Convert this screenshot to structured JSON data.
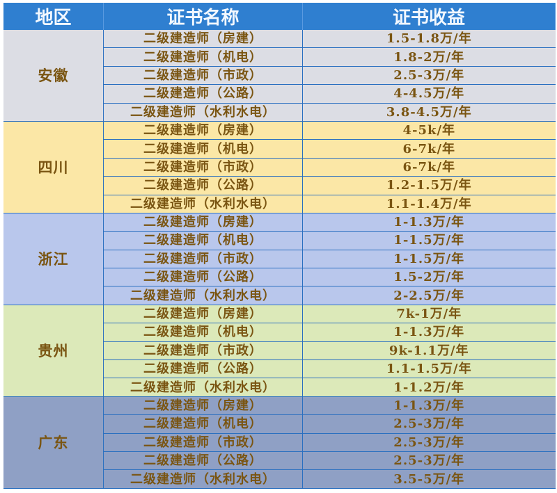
{
  "header": {
    "region": "地区",
    "cert_name": "证书名称",
    "income": "证书收益"
  },
  "colors": {
    "header": "#2f7fd0",
    "text": "#7a5512",
    "grid": "#2a6fc0"
  },
  "groups": [
    {
      "region": "安徽",
      "color": "#dcdde4",
      "rows": [
        {
          "name": "二级建造师（房建）",
          "income": "1.5-1.8万/年"
        },
        {
          "name": "二级建造师（机电）",
          "income": "1.8-2万/年"
        },
        {
          "name": "二级建造师（市政）",
          "income": "2.5-3万/年"
        },
        {
          "name": "二级建造师（公路）",
          "income": "4-4.5万/年"
        },
        {
          "name": "二级建造师（水利水电）",
          "income": "3.8-4.5万/年"
        }
      ]
    },
    {
      "region": "四川",
      "color": "#fbe7a6",
      "rows": [
        {
          "name": "二级建造师（房建）",
          "income": "4-5k/年"
        },
        {
          "name": "二级建造师（机电）",
          "income": "6-7k/年"
        },
        {
          "name": "二级建造师（市政）",
          "income": "6-7k/年"
        },
        {
          "name": "二级建造师（公路）",
          "income": "1.2-1.5万/年"
        },
        {
          "name": "二级建造师（水利水电）",
          "income": "1.1-1.4万/年"
        }
      ]
    },
    {
      "region": "浙江",
      "color": "#b9c7ec",
      "rows": [
        {
          "name": "二级建造师（房建）",
          "income": "1-1.3万/年"
        },
        {
          "name": "二级建造师（机电）",
          "income": "1-1.5万/年"
        },
        {
          "name": "二级建造师（市政）",
          "income": "1-1.5万/年"
        },
        {
          "name": "二级建造师（公路）",
          "income": "1.5-2万/年"
        },
        {
          "name": "二级建造师（水利水电）",
          "income": "2-2.5万/年"
        }
      ]
    },
    {
      "region": "贵州",
      "color": "#dce9b9",
      "rows": [
        {
          "name": "二级建造师（房建）",
          "income": "7k-1万/年"
        },
        {
          "name": "二级建造师（机电）",
          "income": "1-1.3万/年"
        },
        {
          "name": "二级建造师（市政）",
          "income": "9k-1.1万/年"
        },
        {
          "name": "二级建造师（公路）",
          "income": "1.1-1.5万/年"
        },
        {
          "name": "二级建造师（水利水电）",
          "income": "1-1.2万/年"
        }
      ]
    },
    {
      "region": "广东",
      "color": "#8fa0c5",
      "rows": [
        {
          "name": "二级建造师（房建）",
          "income": "1-1.3万/年"
        },
        {
          "name": "二级建造师（机电）",
          "income": "2.5-3万/年"
        },
        {
          "name": "二级建造师（市政）",
          "income": "2.5-3万/年"
        },
        {
          "name": "二级建造师（公路）",
          "income": "2.5-3万/年"
        },
        {
          "name": "二级建造师（水利水电）",
          "income": "3.5-5万/年"
        }
      ]
    }
  ]
}
